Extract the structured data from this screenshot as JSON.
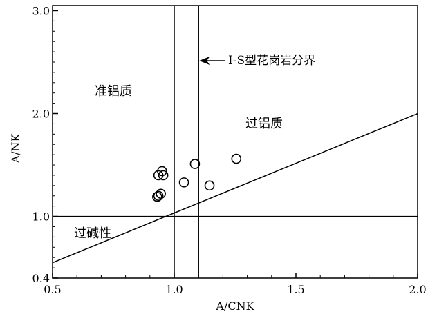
{
  "chart_data": {
    "type": "scatter",
    "title": "",
    "xlabel": "A/CNK",
    "ylabel": "A/NK",
    "xlim": [
      0.5,
      2.0
    ],
    "ylim": [
      0.4,
      3.05
    ],
    "grid": false,
    "x_ticks": [
      0.5,
      1.0,
      1.5,
      2.0
    ],
    "x_tick_labels": [
      "0.5",
      "1.0",
      "1.5",
      "2.0"
    ],
    "y_ticks": [
      0.4,
      1.0,
      2.0,
      3.0
    ],
    "y_tick_labels": [
      "0.4",
      "1.0",
      "2.0",
      "3.0"
    ],
    "points": [
      {
        "x": 0.935,
        "y": 1.4
      },
      {
        "x": 0.95,
        "y": 1.44
      },
      {
        "x": 0.955,
        "y": 1.4
      },
      {
        "x": 0.935,
        "y": 1.2
      },
      {
        "x": 0.945,
        "y": 1.22
      },
      {
        "x": 0.93,
        "y": 1.19
      },
      {
        "x": 1.04,
        "y": 1.33
      },
      {
        "x": 1.085,
        "y": 1.51
      },
      {
        "x": 1.145,
        "y": 1.3
      },
      {
        "x": 1.255,
        "y": 1.56
      }
    ],
    "lines": [
      {
        "name": "A/CNK=1.0",
        "x1": 1.0,
        "y1": 0.4,
        "x2": 1.0,
        "y2": 3.05
      },
      {
        "name": "A/CNK=1.1",
        "x1": 1.1,
        "y1": 0.4,
        "x2": 1.1,
        "y2": 3.05
      },
      {
        "name": "A/NK=1.0",
        "x1": 0.5,
        "y1": 1.0,
        "x2": 2.0,
        "y2": 1.0
      },
      {
        "name": "A/NK=A/CNK",
        "x1": 0.5,
        "y1": 0.55,
        "x2": 2.0,
        "y2": 2.0
      }
    ],
    "regions": {
      "metaluminous": "准铝质",
      "peraluminous": "过铝质",
      "peralkaline": "过碱性"
    },
    "annotation": "I-S型花岗岩分界"
  }
}
